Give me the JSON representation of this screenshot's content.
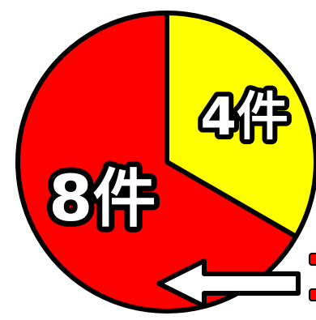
{
  "chart_data": {
    "type": "pie",
    "categories": [
      "4件",
      "8件"
    ],
    "values": [
      4,
      8
    ],
    "labels": [
      "4件",
      "8件"
    ],
    "colors": [
      "#ffff00",
      "#ff0000"
    ],
    "start_angle": "12 o'clock",
    "direction": "clockwise",
    "annotation_icon": "arrow-left-icon",
    "annotation_color": "#ffffff"
  }
}
